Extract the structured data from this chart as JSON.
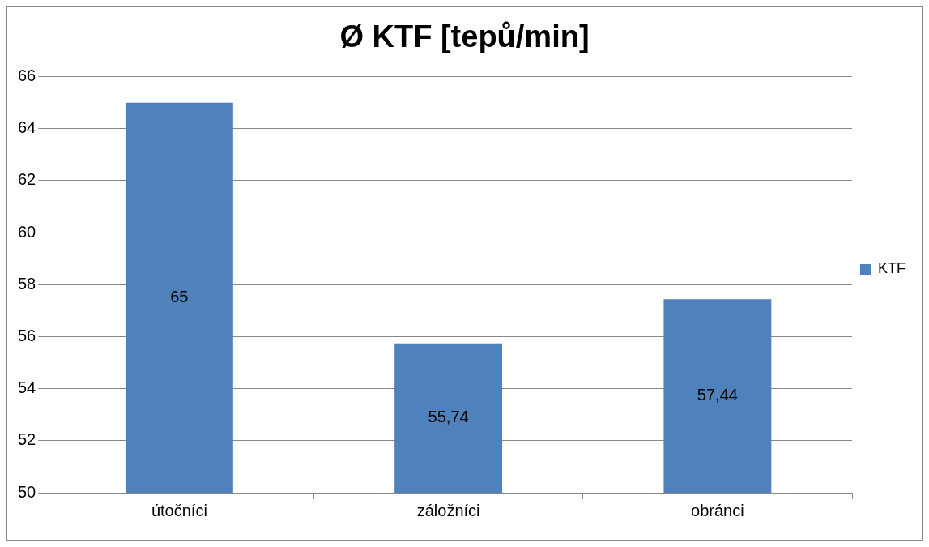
{
  "chart_data": {
    "type": "bar",
    "title": "Ø KTF [tepů/min]",
    "categories": [
      "útočníci",
      "záložníci",
      "obránci"
    ],
    "series": [
      {
        "name": "KTF",
        "color": "#4f81bd",
        "values": [
          65,
          55.74,
          57.44
        ],
        "value_labels": [
          "65",
          "55,74",
          "57,44"
        ]
      }
    ],
    "ylim": [
      50,
      66
    ],
    "yticks": [
      50,
      52,
      54,
      56,
      58,
      60,
      62,
      64,
      66
    ],
    "grid": "y",
    "legend": "right"
  }
}
